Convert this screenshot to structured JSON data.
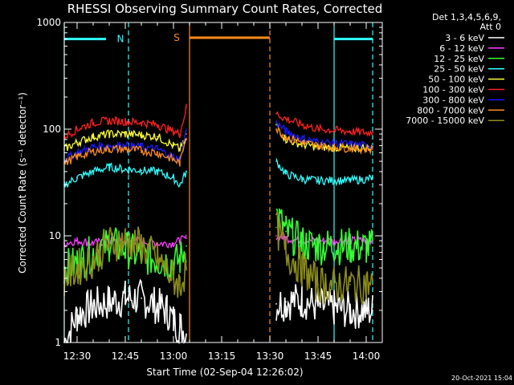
{
  "chart_data": {
    "type": "line",
    "title": "RHESSI Observing Summary Count Rates, Corrected",
    "xlabel": "Start Time (02-Sep-04 12:26:02)",
    "ylabel": "Corrected Count Rate (s⁻¹ detector⁻¹)",
    "yscale": "log",
    "ylim": [
      1,
      1000
    ],
    "xlim": [
      "12:26",
      "14:05"
    ],
    "x_ticks": [
      "12:30",
      "12:45",
      "13:00",
      "13:15",
      "13:30",
      "13:45",
      "14:00"
    ],
    "y_ticks": [
      "1",
      "10",
      "100",
      "1000"
    ],
    "legend_header": [
      "Det 1,3,4,5,6,9,",
      "Att 0"
    ],
    "legend_position": "right",
    "annotation": "20-Oct-2021 15:04",
    "x_unit": "minutes after 12:00",
    "gap": [
      64.5,
      92
    ],
    "series": [
      {
        "name": "3 - 6 keV",
        "color": "#ffffff",
        "x": [
          26,
          30,
          35,
          40,
          45,
          50,
          55,
          58,
          60,
          62,
          64,
          92,
          95,
          100,
          105,
          110,
          115,
          120,
          122
        ],
        "y": [
          1,
          1.8,
          2.2,
          2.4,
          2.6,
          2.6,
          2.2,
          2,
          1.6,
          1.4,
          1.2,
          2.3,
          2.4,
          2.5,
          2.2,
          2.1,
          2,
          2,
          2
        ]
      },
      {
        "name": "6 - 12 keV",
        "color": "#ff40ff",
        "x": [
          26,
          30,
          35,
          40,
          45,
          50,
          55,
          60,
          62,
          64,
          92,
          95,
          100,
          105,
          110,
          115,
          120,
          122
        ],
        "y": [
          8.5,
          9,
          8.5,
          9,
          8.8,
          9,
          8.5,
          8.5,
          9,
          9.5,
          10,
          9.5,
          9,
          9,
          9,
          9,
          9,
          9
        ]
      },
      {
        "name": "12 - 25 keV",
        "color": "#33ff33",
        "x": [
          26,
          30,
          35,
          40,
          45,
          50,
          55,
          60,
          62,
          64,
          92,
          95,
          100,
          105,
          110,
          115,
          120,
          122
        ],
        "y": [
          5,
          5.5,
          7,
          8.5,
          7.5,
          6.5,
          6,
          5.5,
          6,
          8,
          16,
          11,
          8.5,
          8,
          8,
          8,
          7.8,
          7.8
        ]
      },
      {
        "name": "25 - 50 keV",
        "color": "#33ffff",
        "x": [
          26,
          30,
          35,
          40,
          45,
          50,
          55,
          60,
          62,
          64,
          92,
          95,
          100,
          105,
          110,
          115,
          120,
          122
        ],
        "y": [
          30,
          35,
          40,
          44,
          42,
          41,
          40,
          35,
          30,
          40,
          50,
          38,
          34,
          33,
          33,
          33,
          34,
          35
        ]
      },
      {
        "name": "50 - 100 keV",
        "color": "#ffff33",
        "x": [
          26,
          30,
          35,
          40,
          45,
          50,
          55,
          60,
          62,
          64,
          92,
          95,
          100,
          105,
          110,
          115,
          120,
          122
        ],
        "y": [
          65,
          75,
          85,
          90,
          90,
          88,
          85,
          70,
          65,
          80,
          110,
          80,
          72,
          68,
          67,
          66,
          67,
          68
        ]
      },
      {
        "name": "100 - 300 keV",
        "color": "#ff2020",
        "x": [
          26,
          30,
          35,
          40,
          45,
          50,
          55,
          60,
          62,
          64,
          92,
          95,
          100,
          105,
          110,
          115,
          120,
          122
        ],
        "y": [
          85,
          100,
          115,
          120,
          118,
          115,
          110,
          95,
          90,
          160,
          140,
          125,
          110,
          100,
          98,
          95,
          93,
          93
        ]
      },
      {
        "name": "300 - 800 keV",
        "color": "#1a1aff",
        "x": [
          26,
          30,
          35,
          40,
          45,
          50,
          55,
          60,
          62,
          64,
          92,
          95,
          100,
          105,
          110,
          115,
          120,
          122
        ],
        "y": [
          52,
          60,
          68,
          70,
          70,
          68,
          65,
          55,
          52,
          100,
          115,
          95,
          82,
          76,
          74,
          72,
          70,
          70
        ]
      },
      {
        "name": "800 - 7000 keV",
        "color": "#ff8c1a",
        "x": [
          26,
          30,
          35,
          40,
          45,
          50,
          55,
          60,
          62,
          64,
          92,
          95,
          100,
          105,
          110,
          115,
          120,
          122
        ],
        "y": [
          48,
          55,
          62,
          65,
          65,
          63,
          60,
          52,
          48,
          90,
          100,
          85,
          75,
          70,
          68,
          66,
          65,
          65
        ]
      },
      {
        "name": "7000 - 15000 keV",
        "color": "#8c8c1a",
        "x": [
          26,
          30,
          35,
          40,
          45,
          50,
          55,
          60,
          62,
          64,
          92,
          95,
          100,
          105,
          110,
          115,
          120,
          122
        ],
        "y": [
          4,
          5,
          6,
          8.5,
          9,
          8,
          6,
          4,
          3.5,
          5,
          12,
          7,
          5,
          3.5,
          3.5,
          3.5,
          3.5,
          3.5
        ]
      }
    ],
    "state_bars": [
      {
        "label": "N",
        "color": "#33ffff",
        "y": 700,
        "segments": [
          [
            26,
            39
          ],
          [
            110,
            122
          ]
        ]
      },
      {
        "label": "S",
        "color": "#ff8c1a",
        "y": 720,
        "segments": [
          [
            65,
            90
          ]
        ]
      }
    ],
    "markers": [
      {
        "x": 26,
        "color": "#33ffff",
        "style": "solid"
      },
      {
        "x": 46,
        "color": "#33ffff",
        "style": "dash"
      },
      {
        "x": 65,
        "color": "#ff8c1a",
        "style": "solid"
      },
      {
        "x": 90,
        "color": "#ff8c1a",
        "style": "dash"
      },
      {
        "x": 110,
        "color": "#33ffff",
        "style": "solid"
      },
      {
        "x": 122,
        "color": "#33ffff",
        "style": "dash"
      }
    ]
  }
}
